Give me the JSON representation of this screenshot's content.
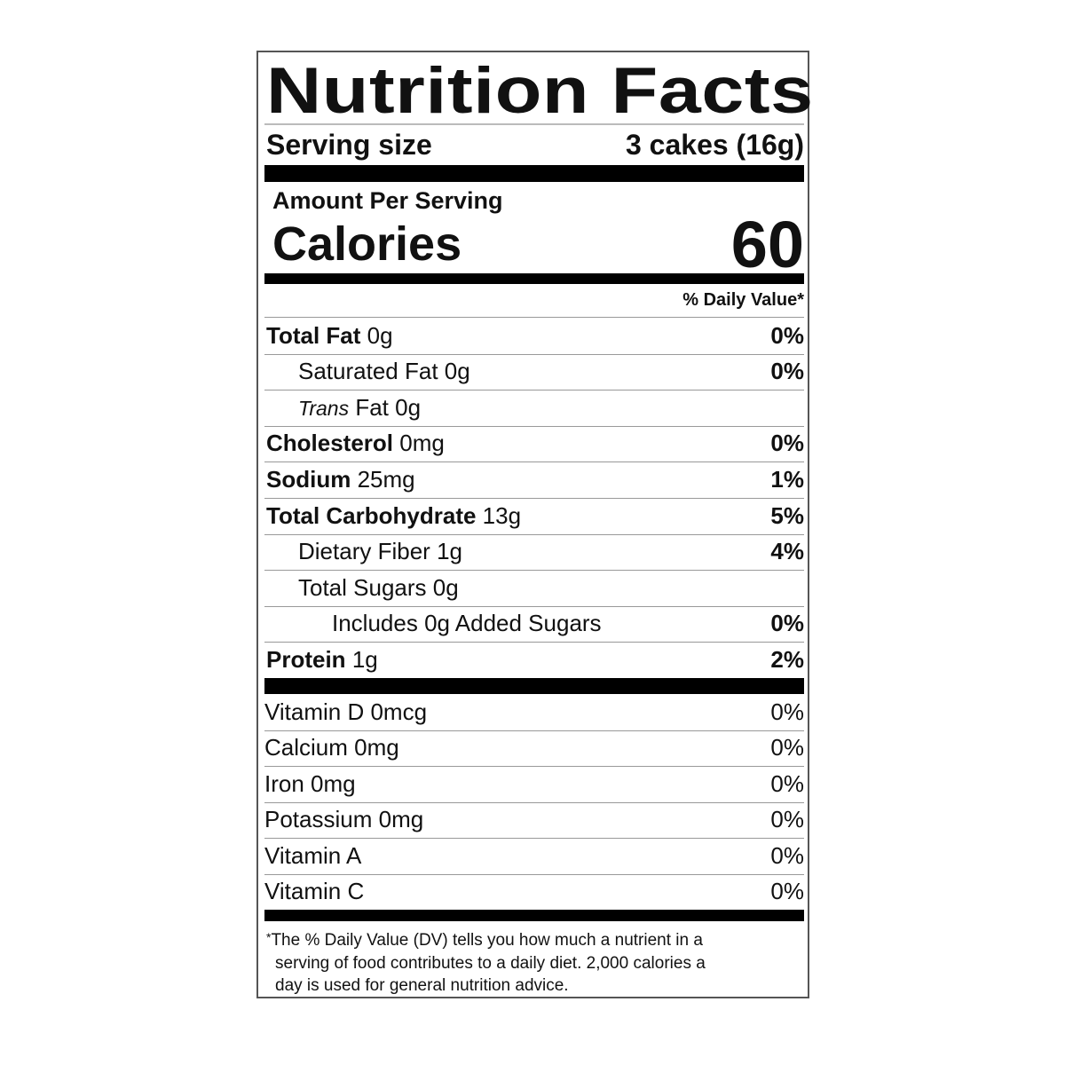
{
  "title": "Nutrition Facts",
  "serving": {
    "label": "Serving size",
    "value": "3 cakes (16g)"
  },
  "amount_per_serving": "Amount Per Serving",
  "calories": {
    "label": "Calories",
    "value": "60"
  },
  "daily_value_header": "% Daily Value*",
  "nutrients": [
    {
      "name": "Total Fat",
      "amount": "0g",
      "dv": "0%"
    },
    {
      "name": "Saturated Fat",
      "amount": "0g",
      "dv": "0%"
    },
    {
      "name": "Trans",
      "suffix": "Fat",
      "amount": "0g",
      "dv": ""
    },
    {
      "name": "Cholesterol",
      "amount": "0mg",
      "dv": "0%"
    },
    {
      "name": "Sodium",
      "amount": "25mg",
      "dv": "1%"
    },
    {
      "name": "Total Carbohydrate",
      "amount": "13g",
      "dv": "5%"
    },
    {
      "name": "Dietary Fiber",
      "amount": "1g",
      "dv": "4%"
    },
    {
      "name": "Total Sugars",
      "amount": "0g",
      "dv": ""
    },
    {
      "name": "Includes 0g Added Sugars",
      "amount": "",
      "dv": "0%"
    },
    {
      "name": "Protein",
      "amount": "1g",
      "dv": "2%"
    }
  ],
  "vitamins": [
    {
      "name": "Vitamin D 0mcg",
      "dv": "0%"
    },
    {
      "name": "Calcium 0mg",
      "dv": "0%"
    },
    {
      "name": "Iron 0mg",
      "dv": "0%"
    },
    {
      "name": "Potassium 0mg",
      "dv": "0%"
    },
    {
      "name": "Vitamin A",
      "dv": "0%"
    },
    {
      "name": "Vitamin C",
      "dv": "0%"
    }
  ],
  "footnote": {
    "star": "*",
    "lines": [
      "The % Daily Value (DV) tells you how much a nutrient in a",
      "serving of food contributes to a daily diet. 2,000 calories a",
      "day is used for general nutrition advice."
    ]
  }
}
